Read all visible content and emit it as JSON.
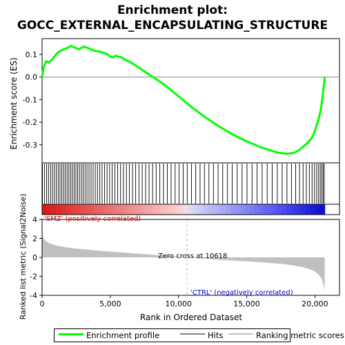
{
  "chart_data": {
    "type": "line",
    "title_line1": "Enrichment plot:",
    "title_line2": "GOCC_EXTERNAL_ENCAPSULATING_STRUCTURE",
    "top_panel": {
      "ylabel": "Enrichment score (ES)",
      "ylim": [
        -0.38,
        0.17
      ],
      "yticks": [
        0.1,
        0.0,
        -0.1,
        -0.2,
        -0.3
      ],
      "ytick_labels": [
        "0.1",
        "0.0",
        "-0.1",
        "-0.2",
        "-0.3"
      ],
      "series": [
        {
          "name": "Enrichment profile",
          "color": "#00ff00",
          "x": [
            0,
            100,
            300,
            500,
            700,
            900,
            1100,
            1300,
            1500,
            1700,
            1900,
            2100,
            2300,
            2500,
            2700,
            2900,
            3100,
            3300,
            3600,
            3900,
            4200,
            4500,
            4800,
            5000,
            5200,
            5400,
            5600,
            5800,
            6000,
            6500,
            7000,
            7500,
            8000,
            8500,
            9000,
            9500,
            10000,
            10600,
            11000,
            12000,
            13000,
            14000,
            15000,
            16000,
            16500,
            17000,
            17300,
            17600,
            17900,
            18200,
            18500,
            18800,
            19100,
            19400,
            19700,
            19900,
            20100,
            20300,
            20450,
            20550,
            20650,
            20720
          ],
          "values": [
            0.0,
            0.04,
            0.07,
            0.065,
            0.075,
            0.09,
            0.105,
            0.115,
            0.12,
            0.125,
            0.13,
            0.138,
            0.133,
            0.128,
            0.123,
            0.13,
            0.135,
            0.13,
            0.122,
            0.115,
            0.113,
            0.108,
            0.1,
            0.09,
            0.087,
            0.095,
            0.09,
            0.088,
            0.08,
            0.065,
            0.045,
            0.025,
            0.005,
            -0.015,
            -0.035,
            -0.06,
            -0.085,
            -0.115,
            -0.135,
            -0.18,
            -0.22,
            -0.255,
            -0.285,
            -0.31,
            -0.32,
            -0.33,
            -0.335,
            -0.337,
            -0.34,
            -0.338,
            -0.335,
            -0.325,
            -0.31,
            -0.295,
            -0.275,
            -0.255,
            -0.22,
            -0.18,
            -0.14,
            -0.09,
            -0.04,
            0.0
          ]
        }
      ]
    },
    "hits_panel": {
      "label": "Hits",
      "hit_ranks": [
        30,
        180,
        330,
        470,
        620,
        760,
        900,
        1040,
        1180,
        1310,
        1440,
        1570,
        1700,
        1830,
        1960,
        2090,
        2220,
        2350,
        2480,
        2610,
        2740,
        2880,
        3010,
        3150,
        3290,
        3440,
        3590,
        3740,
        3900,
        4060,
        4230,
        4400,
        4580,
        4760,
        4950,
        5140,
        5340,
        5540,
        5750,
        5960,
        6180,
        6400,
        6630,
        6860,
        7100,
        7340,
        7590,
        7840,
        8100,
        8360,
        8630,
        8900,
        9180,
        9460,
        9750,
        10040,
        10340,
        10640,
        10950,
        11260,
        11580,
        11900,
        12230,
        12560,
        12900,
        13240,
        13590,
        13940,
        14300,
        14660,
        15020,
        15390,
        15760,
        16130,
        16500,
        16870,
        17240,
        17600,
        17950,
        18280,
        18590,
        18870,
        19130,
        19370,
        19590,
        19790,
        19970,
        20130,
        20270,
        20390,
        20500,
        20600,
        20680
      ]
    },
    "metric_panel": {
      "ylabel": "Ranked list metric (Signal2Noise)",
      "ylim": [
        -4,
        4
      ],
      "yticks": [
        4,
        2,
        0,
        -2,
        -4
      ],
      "ytick_labels": [
        "4",
        "2",
        "0",
        "-2",
        "-4"
      ],
      "label": "Ranking metric scores",
      "x": [
        0,
        50,
        150,
        300,
        500,
        800,
        1200,
        1700,
        2300,
        3000,
        4000,
        5000,
        6000,
        7000,
        8000,
        9000,
        10000,
        10618,
        11500,
        12500,
        13500,
        14500,
        15500,
        16500,
        17500,
        18300,
        18900,
        19400,
        19800,
        20100,
        20350,
        20500,
        20600,
        20680,
        20720
      ],
      "values": [
        2.6,
        2.2,
        1.9,
        1.7,
        1.5,
        1.35,
        1.2,
        1.07,
        0.95,
        0.85,
        0.72,
        0.61,
        0.5,
        0.39,
        0.28,
        0.18,
        0.08,
        0.0,
        -0.1,
        -0.2,
        -0.3,
        -0.38,
        -0.46,
        -0.56,
        -0.68,
        -0.82,
        -0.98,
        -1.15,
        -1.35,
        -1.6,
        -1.95,
        -2.3,
        -2.7,
        -3.2,
        -3.6
      ]
    },
    "pos_label": "'SMZ' (positively correlated)",
    "neg_label": "'CTRL' (negatively correlated)",
    "zero_cross_label": "Zero cross at 10618",
    "zero_cross_rank": 10618,
    "xlabel": "Rank in Ordered Dataset",
    "xlim": [
      0,
      21800
    ],
    "xticks": [
      0,
      5000,
      10000,
      15000,
      20000
    ],
    "xtick_labels": [
      "0",
      "5,000",
      "10,000",
      "15,000",
      "20,000"
    ],
    "grid": false
  },
  "legend": {
    "enrichment_label": "Enrichment profile",
    "hits_label": "Hits",
    "metric_label": "Ranking metric scores"
  },
  "colors": {
    "profile": "#00ff00",
    "metric_fill": "#c0c0c0",
    "pos_text": "#cc0000",
    "neg_text": "#0000cc",
    "zero_line": "#808080",
    "zero_dashed": "#c8c8c8"
  }
}
